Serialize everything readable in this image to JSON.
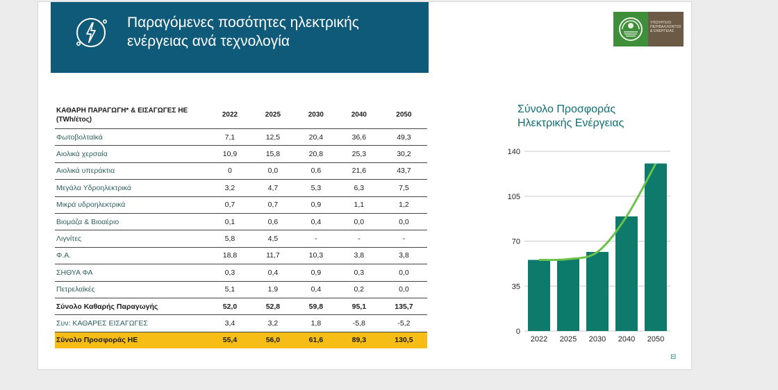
{
  "header": {
    "title_line1": "Παραγόμενες ποσότητες ηλεκτρικής",
    "title_line2": "ενέργειας ανά τεχνολογία",
    "icon": "bolt-plug-icon"
  },
  "logo": {
    "text": "ΥΠΟΥΡΓΕΙΟ ΠΕΡΙΒΑΛΛΟΝΤΟΣ & ΕΝΕΡΓΕΙΑΣ",
    "colors": {
      "mark": "#3f8f3a",
      "bg": "#6b5a45"
    }
  },
  "table": {
    "header_label": "ΚΑΘΑΡΗ ΠΑΡΑΓΩΓΗ* & ΕΙΣΑΓΩΓΕΣ ΗΕ (TWh/έτος)",
    "years": [
      "2022",
      "2025",
      "2030",
      "2040",
      "2050"
    ],
    "rows": [
      {
        "label": "Φωτοβολταϊκά",
        "values": [
          "7,1",
          "12,5",
          "20,4",
          "36,6",
          "49,3"
        ]
      },
      {
        "label": "Αιολικά χερσαία",
        "values": [
          "10,9",
          "15,8",
          "20,8",
          "25,3",
          "30,2"
        ]
      },
      {
        "label": "Αιολικά υπεράκτια",
        "values": [
          "0",
          "0,0",
          "0,6",
          "21,6",
          "43,7"
        ]
      },
      {
        "label": "Μεγάλα Υδροηλεκτρικά",
        "values": [
          "3,2",
          "4,7",
          "5,3",
          "6,3",
          "7,5"
        ]
      },
      {
        "label": "Μικρά υδροηλεκτρικά",
        "values": [
          "0,7",
          "0,7",
          "0,9",
          "1,1",
          "1,2"
        ]
      },
      {
        "label": "Βιομάζα & Βιοαέριο",
        "values": [
          "0,1",
          "0,6",
          "0,4",
          "0,0",
          "0,0"
        ]
      },
      {
        "label": "Λιγνίτες",
        "values": [
          "5,8",
          "4,5",
          "-",
          "-",
          "-"
        ]
      },
      {
        "label": "Φ.Α.",
        "values": [
          "18,8",
          "11,7",
          "10,3",
          "3,8",
          "3,8"
        ]
      },
      {
        "label": "ΣΗΘΥΑ ΦΑ",
        "values": [
          "0,3",
          "0,4",
          "0,9",
          "0,3",
          "0,0"
        ]
      },
      {
        "label": "Πετρελαϊκές",
        "values": [
          "5,1",
          "1,9",
          "0,4",
          "0,2",
          "0,0"
        ]
      }
    ],
    "total_row": {
      "label": "Σύνολο  Καθαρής Παραγωγής",
      "values": [
        "52,0",
        "52,8",
        "59,8",
        "95,1",
        "135,7"
      ]
    },
    "imports_row": {
      "label": "Συν: ΚΑΘΑΡΕΣ ΕΙΣΑΓΩΓΕΣ",
      "values": [
        "3,4",
        "3,2",
        "1,8",
        "-5,8",
        "-5,2"
      ]
    },
    "supply_row": {
      "label": "Σύνολο Προσφοράς ΗΕ",
      "values": [
        "55,4",
        "56,0",
        "61,6",
        "89,3",
        "130,5"
      ]
    },
    "highlight_color": "#f5bd16"
  },
  "chart_title_line1": "Σύνολο Προσφοράς",
  "chart_title_line2": "Ηλεκτρικής Ενέργειας",
  "chart_data": {
    "type": "bar",
    "title": "Σύνολο Προσφοράς Ηλεκτρικής Ενέργειας",
    "categories": [
      "2022",
      "2025",
      "2030",
      "2040",
      "2050"
    ],
    "values": [
      55.4,
      56.0,
      61.6,
      89.3,
      130.5
    ],
    "trend_line": true,
    "ylim": [
      0,
      140
    ],
    "yticks": [
      "0",
      "35",
      "70",
      "105",
      "140"
    ],
    "grid": true,
    "bar_color": "#0e7a6c",
    "line_color": "#6cc24a"
  },
  "footer_icon": "page-icon"
}
